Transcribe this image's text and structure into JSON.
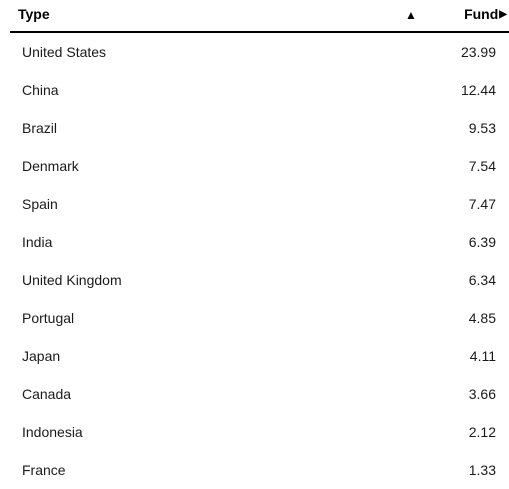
{
  "header": {
    "type_label": "Type",
    "sort_indicator": "▲",
    "fund_label": "Fund",
    "fund_arrow": "▶"
  },
  "rows": [
    {
      "name": "United States",
      "value": "23.99"
    },
    {
      "name": "China",
      "value": "12.44"
    },
    {
      "name": "Brazil",
      "value": "9.53"
    },
    {
      "name": "Denmark",
      "value": "7.54"
    },
    {
      "name": "Spain",
      "value": "7.47"
    },
    {
      "name": "India",
      "value": "6.39"
    },
    {
      "name": "United Kingdom",
      "value": "6.34"
    },
    {
      "name": "Portugal",
      "value": "4.85"
    },
    {
      "name": "Japan",
      "value": "4.11"
    },
    {
      "name": "Canada",
      "value": "3.66"
    },
    {
      "name": "Indonesia",
      "value": "2.12"
    },
    {
      "name": "France",
      "value": "1.33"
    }
  ]
}
